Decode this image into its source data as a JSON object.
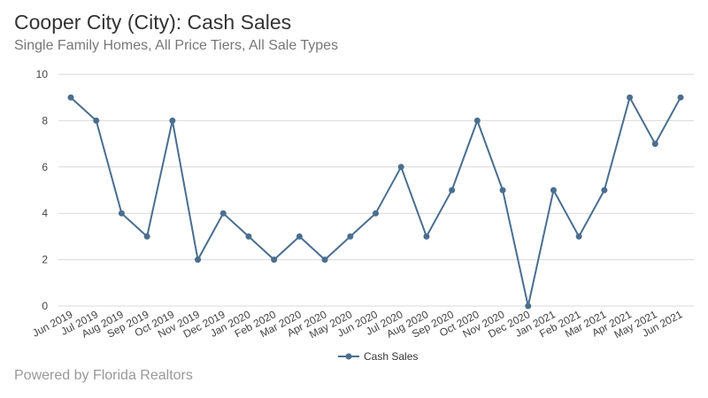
{
  "header": {
    "title": "Cooper City (City): Cash Sales",
    "subtitle": "Single Family Homes, All Price Tiers, All Sale Types"
  },
  "footer": {
    "text": "Powered by Florida Realtors"
  },
  "chart_data": {
    "type": "line",
    "title": "Cooper City (City): Cash Sales",
    "subtitle": "Single Family Homes, All Price Tiers, All Sale Types",
    "xlabel": "",
    "ylabel": "",
    "ylim": [
      0,
      10
    ],
    "yticks": [
      0,
      2,
      4,
      6,
      8,
      10
    ],
    "grid": true,
    "legend_position": "bottom",
    "categories": [
      "Jun 2019",
      "Jul 2019",
      "Aug 2019",
      "Sep 2019",
      "Oct 2019",
      "Nov 2019",
      "Dec 2019",
      "Jan 2020",
      "Feb 2020",
      "Mar 2020",
      "Apr 2020",
      "May 2020",
      "Jun 2020",
      "Jul 2020",
      "Aug 2020",
      "Sep 2020",
      "Oct 2020",
      "Nov 2020",
      "Dec 2020",
      "Jan 2021",
      "Feb 2021",
      "Mar 2021",
      "Apr 2021",
      "May 2021",
      "Jun 2021"
    ],
    "series": [
      {
        "name": "Cash Sales",
        "color": "#4a6e8e",
        "values": [
          9,
          8,
          4,
          3,
          8,
          2,
          4,
          3,
          2,
          3,
          2,
          3,
          4,
          6,
          3,
          5,
          8,
          5,
          0,
          5,
          3,
          5,
          9,
          7,
          9
        ]
      }
    ]
  }
}
